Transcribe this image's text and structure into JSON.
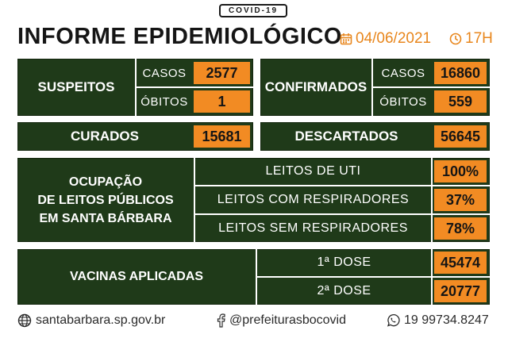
{
  "header": {
    "badge": "COVID-19",
    "title": "INFORME EPIDEMIOLÓGICO",
    "date": "04/06/2021",
    "time": "17H"
  },
  "suspeitos": {
    "label": "SUSPEITOS",
    "casos_label": "CASOS",
    "casos_value": "2577",
    "obitos_label": "ÓBITOS",
    "obitos_value": "1"
  },
  "confirmados": {
    "label": "CONFIRMADOS",
    "casos_label": "CASOS",
    "casos_value": "16860",
    "obitos_label": "ÓBITOS",
    "obitos_value": "559"
  },
  "curados": {
    "label": "CURADOS",
    "value": "15681"
  },
  "descartados": {
    "label": "DESCARTADOS",
    "value": "56645"
  },
  "ocupacao": {
    "label_line1": "OCUPAÇÃO",
    "label_line2": "DE LEITOS PÚBLICOS",
    "label_line3": "EM SANTA BÁRBARA",
    "rows": [
      {
        "label": "LEITOS DE UTI",
        "value": "100%"
      },
      {
        "label": "LEITOS COM RESPIRADORES",
        "value": "37%"
      },
      {
        "label": "LEITOS SEM RESPIRADORES",
        "value": "78%"
      }
    ]
  },
  "vacinas": {
    "label": "VACINAS APLICADAS",
    "rows": [
      {
        "label": "1ª DOSE",
        "value": "45474"
      },
      {
        "label": "2ª DOSE",
        "value": "20777"
      }
    ]
  },
  "footer": {
    "website": "santabarbara.sp.gov.br",
    "social": "@prefeiturasbocovid",
    "phone": "19 99734.8247"
  },
  "colors": {
    "green": "#1f3a19",
    "orange": "#f28b23",
    "accent": "#e8861c"
  },
  "icons": [
    "calendar-icon",
    "clock-icon",
    "globe-icon",
    "facebook-icon",
    "whatsapp-icon"
  ]
}
